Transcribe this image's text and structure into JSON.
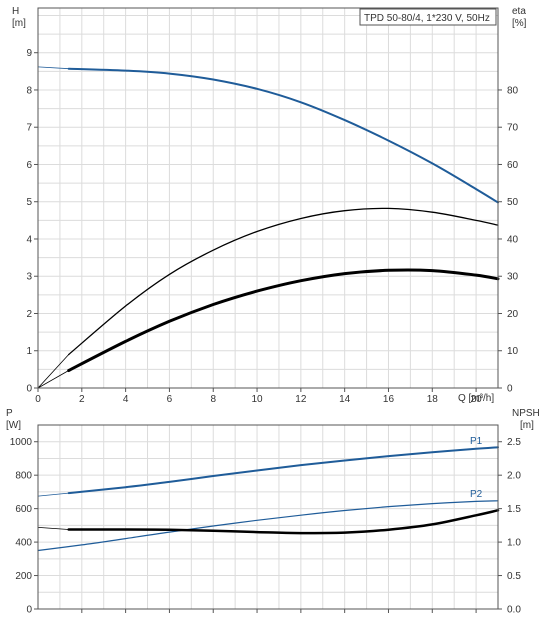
{
  "chart_data": [
    {
      "type": "line",
      "title": "TPD 50-80/4, 1*230 V, 50Hz",
      "x_axis": {
        "label": "Q [m³/h]",
        "range": [
          0,
          21
        ],
        "ticks": [
          "0",
          "2",
          "4",
          "6",
          "8",
          "10",
          "12",
          "14",
          "16",
          "18",
          "20"
        ]
      },
      "y_left": {
        "label_top": "H",
        "label_unit": "[m]",
        "range": [
          0,
          10.2
        ],
        "ticks": [
          "0",
          "1",
          "2",
          "3",
          "4",
          "5",
          "6",
          "7",
          "8",
          "9"
        ]
      },
      "y_right": {
        "label_top": "eta",
        "label_unit": "[%]",
        "range": [
          0,
          102
        ],
        "ticks": [
          "0",
          "10",
          "20",
          "30",
          "40",
          "50",
          "60",
          "70",
          "80"
        ]
      },
      "grid": true,
      "series": [
        {
          "axis": "left",
          "color": "#1f5c99",
          "width": 2,
          "x": [
            1.4,
            4,
            6,
            8,
            10,
            12,
            14,
            16,
            18,
            20,
            21
          ],
          "y": [
            8.57,
            8.52,
            8.44,
            8.28,
            8.03,
            7.67,
            7.19,
            6.64,
            6.03,
            5.34,
            4.98
          ]
        },
        {
          "axis": "right",
          "color": "#000000",
          "width": 1.3,
          "x": [
            1.4,
            4,
            6,
            8,
            10,
            12,
            14,
            16,
            18,
            20,
            21
          ],
          "y": [
            9,
            22,
            30.5,
            37,
            42,
            45.5,
            47.6,
            48.2,
            47.2,
            45,
            43.7
          ]
        },
        {
          "axis": "left",
          "color": "#000000",
          "width": 3,
          "x": [
            1.4,
            4,
            6,
            8,
            10,
            12,
            14,
            16,
            18,
            20,
            21
          ],
          "y": [
            0.47,
            1.25,
            1.79,
            2.24,
            2.6,
            2.88,
            3.07,
            3.16,
            3.15,
            3.03,
            2.93
          ]
        }
      ],
      "extrapolation": [
        {
          "axis": "left",
          "color": "#1f5c99",
          "x": [
            0,
            1.4
          ],
          "y": [
            8.62,
            8.57
          ]
        },
        {
          "axis": "left",
          "color": "#000000",
          "x": [
            0,
            1.4
          ],
          "y": [
            0,
            0.9
          ]
        },
        {
          "axis": "left",
          "color": "#000000",
          "x": [
            0,
            1.4
          ],
          "y": [
            0,
            0.47
          ]
        }
      ]
    },
    {
      "type": "line",
      "x_axis": {
        "range": [
          0,
          21
        ],
        "ticks": [
          "2",
          "4",
          "6",
          "8",
          "10",
          "12",
          "14",
          "16",
          "18",
          "20"
        ]
      },
      "y_left": {
        "label_top": "P",
        "label_unit": "[W]",
        "range": [
          0,
          1100
        ],
        "ticks": [
          "0",
          "200",
          "400",
          "600",
          "800",
          "1000"
        ]
      },
      "y_right": {
        "label_top": "NPSH",
        "label_unit": "[m]",
        "range": [
          0,
          2.75
        ],
        "ticks": [
          "0.0",
          "0.5",
          "1.0",
          "1.5",
          "2.0",
          "2.5"
        ]
      },
      "grid": true,
      "series": [
        {
          "name": "P1",
          "axis": "left",
          "color": "#1f5c99",
          "width": 2,
          "x": [
            1.4,
            4,
            6,
            8,
            10,
            12,
            14,
            16,
            18,
            20,
            21
          ],
          "y": [
            693,
            728,
            760,
            795,
            828,
            860,
            888,
            914,
            937,
            958,
            967
          ]
        },
        {
          "name": "P2",
          "axis": "left",
          "color": "#1f5c99",
          "width": 1.2,
          "x": [
            0,
            2,
            4,
            6,
            8,
            10,
            12,
            14,
            16,
            18,
            20,
            21
          ],
          "y": [
            350,
            383,
            421,
            460,
            496,
            530,
            561,
            589,
            612,
            630,
            643,
            647
          ]
        },
        {
          "axis": "left",
          "color": "#000000",
          "width": 2.5,
          "x": [
            1.4,
            4,
            6,
            8,
            10,
            12,
            14,
            16,
            18,
            20,
            21
          ],
          "y": [
            475,
            475,
            474,
            468,
            460,
            454,
            457,
            474,
            506,
            560,
            590
          ]
        }
      ],
      "extrapolation": [
        {
          "axis": "left",
          "color": "#1f5c99",
          "x": [
            0,
            1.4
          ],
          "y": [
            675,
            693
          ]
        },
        {
          "axis": "left",
          "color": "#000000",
          "x": [
            0,
            1.4
          ],
          "y": [
            488,
            475
          ]
        }
      ]
    }
  ]
}
